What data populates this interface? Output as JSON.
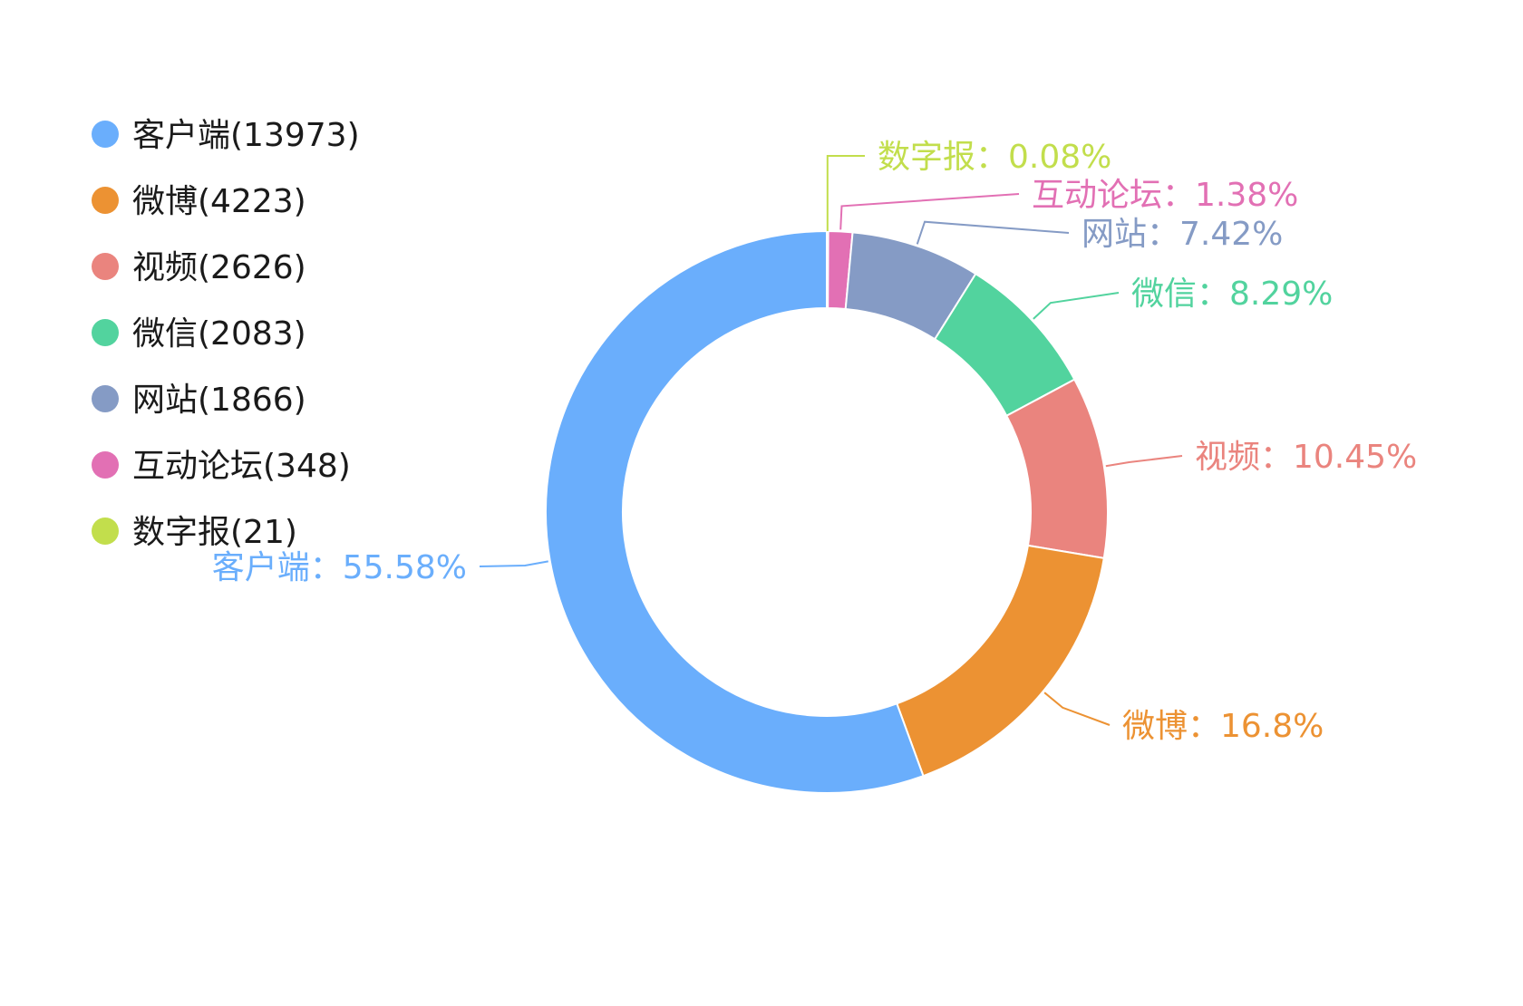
{
  "chart_data": {
    "type": "pie",
    "donut": true,
    "legend_position": "top-left",
    "categories": [
      "客户端",
      "微博",
      "视频",
      "微信",
      "网站",
      "互动论坛",
      "数字报"
    ],
    "values": [
      13973,
      4223,
      2626,
      2083,
      1866,
      348,
      21
    ],
    "percent_labels": [
      "客户端：55.58%",
      "微博：16.8%",
      "视频：10.45%",
      "微信：8.29%",
      "网站：7.42%",
      "互动论坛：1.38%",
      "数字报：0.08%"
    ],
    "legend_labels": [
      "客户端(13973)",
      "微博(4223)",
      "视频(2626)",
      "微信(2083)",
      "网站(1866)",
      "互动论坛(348)",
      "数字报(21)"
    ],
    "colors": [
      "#6aaefc",
      "#ec9233",
      "#ea847e",
      "#52d39e",
      "#859bc5",
      "#e270b4",
      "#c2de4c"
    ]
  }
}
